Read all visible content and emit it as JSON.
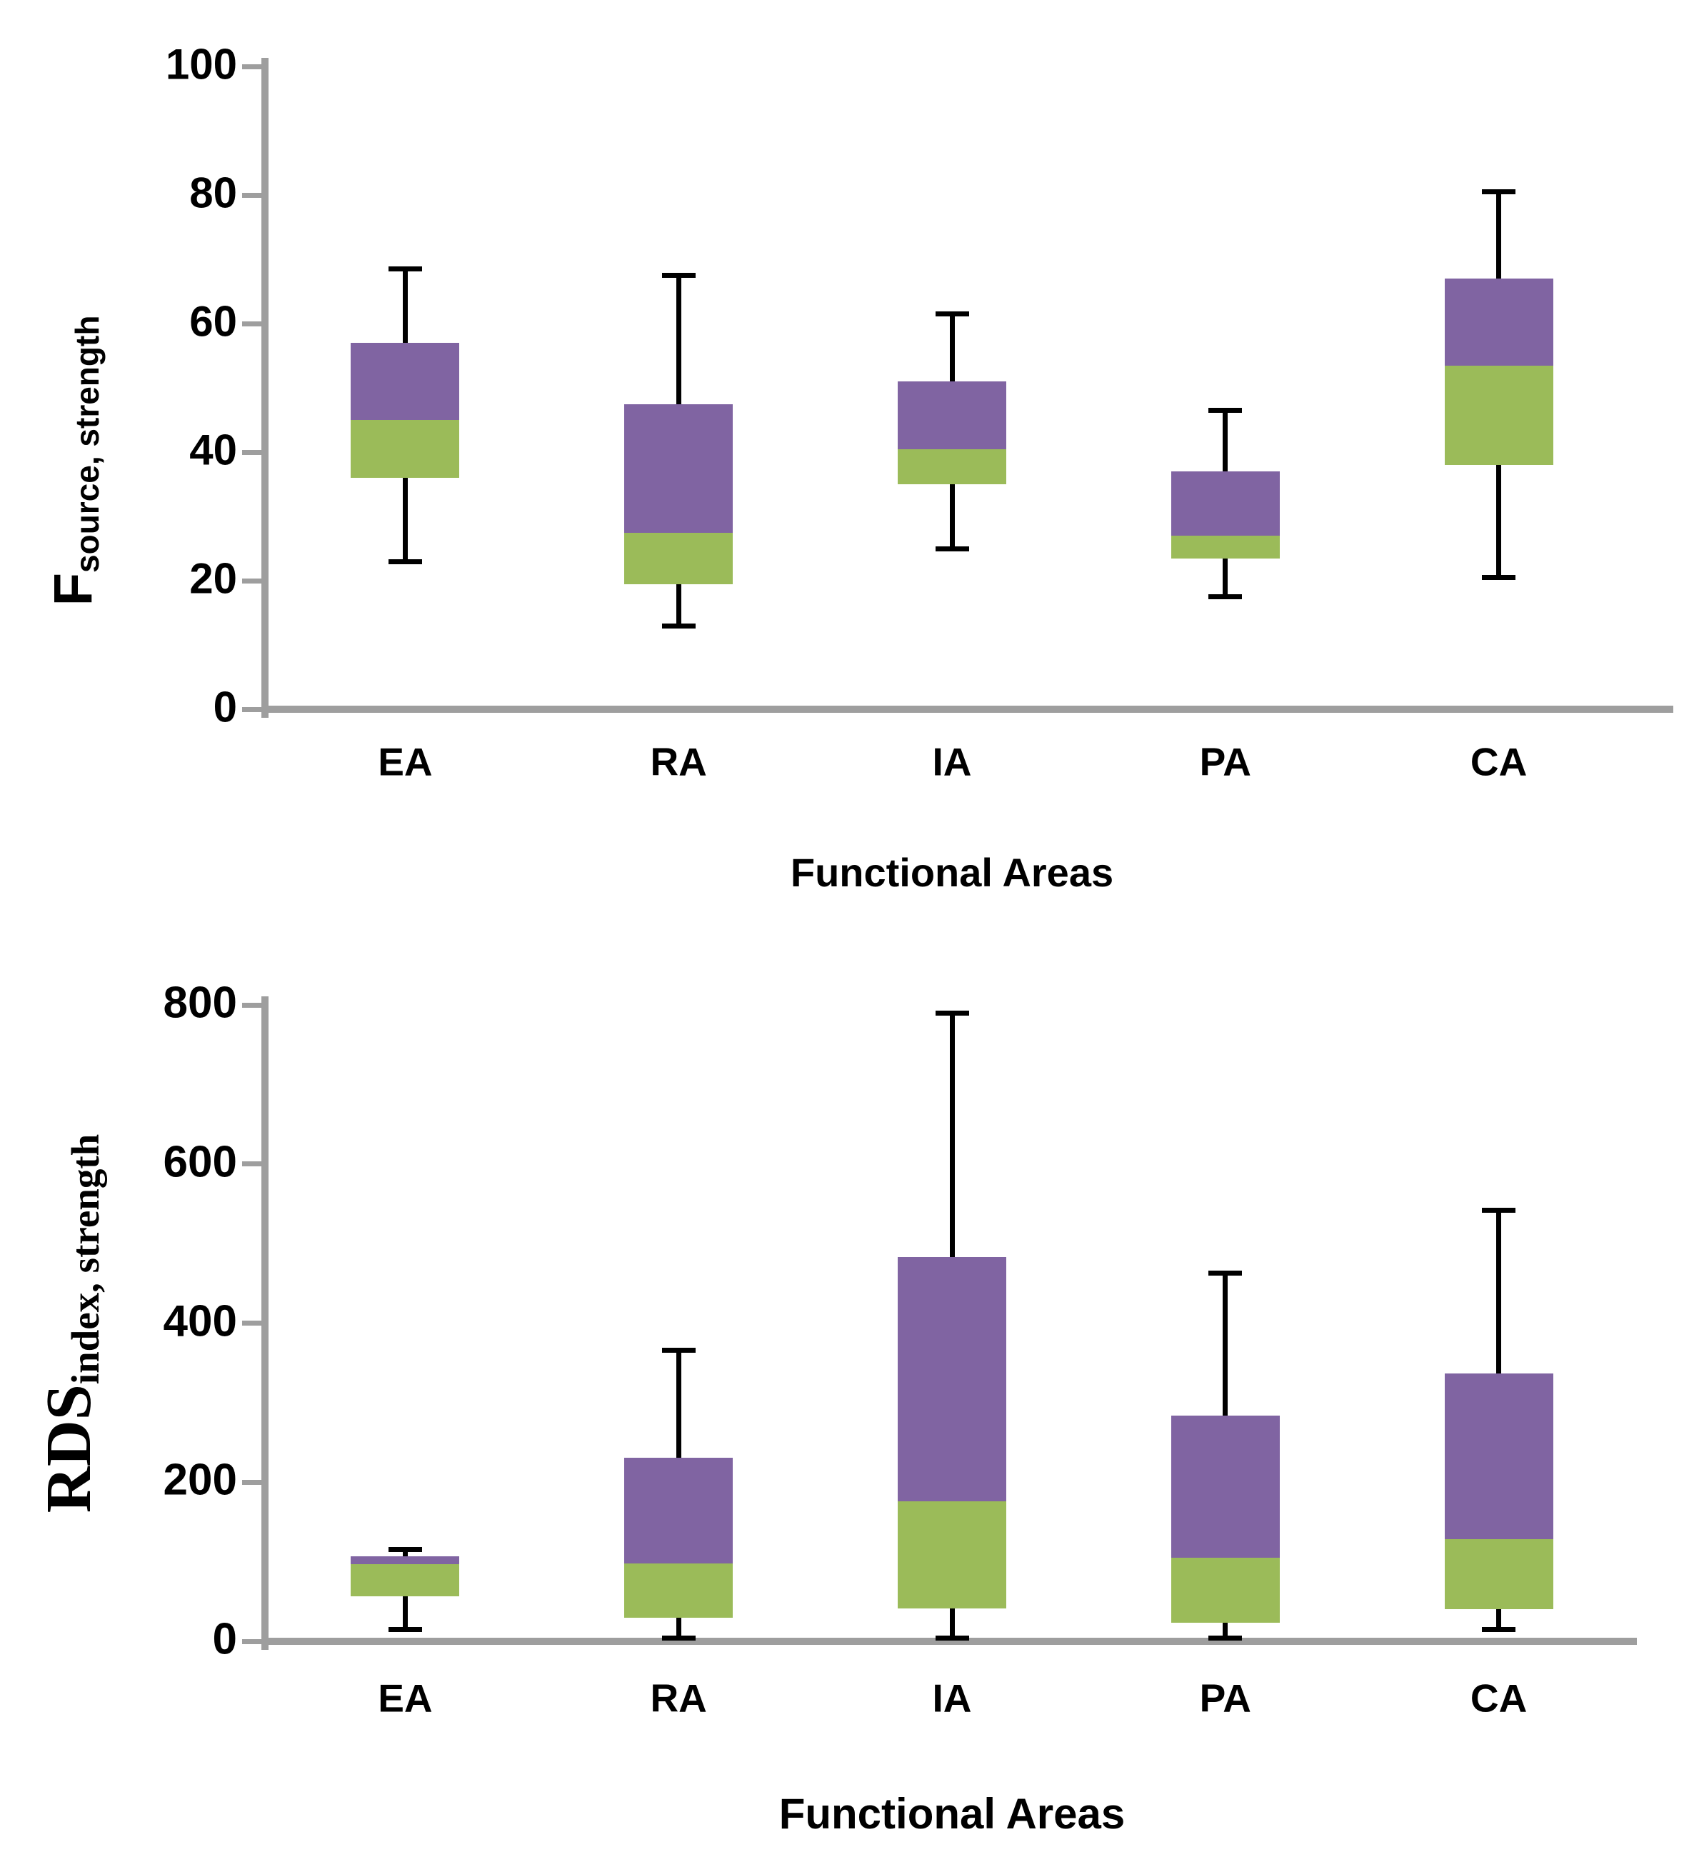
{
  "colors": {
    "box_upper_purple": "#8064A2",
    "box_lower_green": "#9BBB59",
    "whisker_black": "#000000",
    "axis_gray": "#9E9E9E",
    "background": "#FFFFFF",
    "text": "#000000"
  },
  "chart_data": [
    {
      "type": "box",
      "title": "",
      "ylabel_main": "F",
      "ylabel_sub": "source, strength",
      "xlabel": "Functional Areas",
      "categories": [
        "EA",
        "RA",
        "IA",
        "PA",
        "CA"
      ],
      "yticks": [
        0,
        20,
        40,
        60,
        80,
        100
      ],
      "ylim": [
        0,
        100
      ],
      "grid": false,
      "legend": null,
      "box_colors": {
        "q1_to_median": "#9BBB59",
        "median_to_q3": "#8064A2"
      },
      "series": [
        {
          "category": "EA",
          "whisker_low": 23,
          "q1": 36,
          "median": 45,
          "q3": 57,
          "whisker_high": 68.5
        },
        {
          "category": "RA",
          "whisker_low": 13,
          "q1": 19.5,
          "median": 27.5,
          "q3": 47.5,
          "whisker_high": 67.5
        },
        {
          "category": "IA",
          "whisker_low": 25,
          "q1": 35,
          "median": 40.5,
          "q3": 51,
          "whisker_high": 61.5
        },
        {
          "category": "PA",
          "whisker_low": 17.5,
          "q1": 23.5,
          "median": 27,
          "q3": 37,
          "whisker_high": 46.5
        },
        {
          "category": "CA",
          "whisker_low": 20.5,
          "q1": 38,
          "median": 53.5,
          "q3": 67,
          "whisker_high": 80.5
        }
      ]
    },
    {
      "type": "box",
      "title": "",
      "ylabel_main": "RDS",
      "ylabel_sub": "index, strength",
      "xlabel": "Functional Areas",
      "categories": [
        "EA",
        "RA",
        "IA",
        "PA",
        "CA"
      ],
      "yticks": [
        0,
        200,
        400,
        600,
        800
      ],
      "ylim": [
        0,
        800
      ],
      "grid": false,
      "legend": null,
      "box_colors": {
        "q1_to_median": "#9BBB59",
        "median_to_q3": "#8064A2"
      },
      "series": [
        {
          "category": "EA",
          "whisker_low": 15,
          "q1": 57,
          "median": 97,
          "q3": 107,
          "whisker_high": 115
        },
        {
          "category": "RA",
          "whisker_low": 4,
          "q1": 30,
          "median": 98,
          "q3": 231,
          "whisker_high": 366
        },
        {
          "category": "IA",
          "whisker_low": 4,
          "q1": 41,
          "median": 176,
          "q3": 483,
          "whisker_high": 790
        },
        {
          "category": "PA",
          "whisker_low": 4,
          "q1": 23,
          "median": 105,
          "q3": 284,
          "whisker_high": 463
        },
        {
          "category": "CA",
          "whisker_low": 15,
          "q1": 40,
          "median": 128,
          "q3": 337,
          "whisker_high": 542
        }
      ]
    }
  ]
}
